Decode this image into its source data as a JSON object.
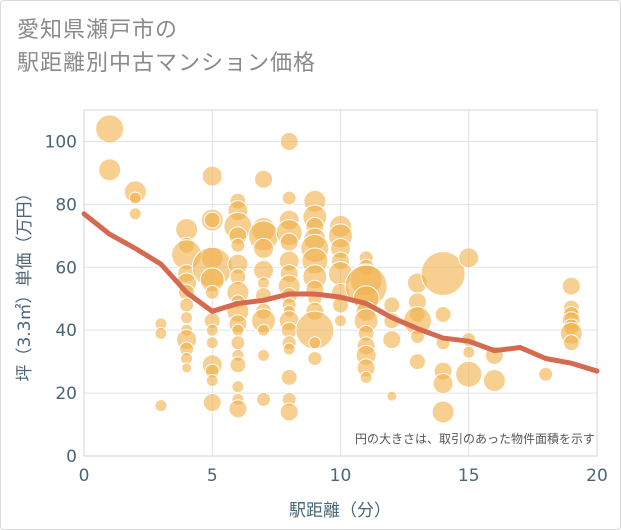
{
  "title_lines": [
    "愛知県瀬戸市の",
    "駅距離別中古マンション価格"
  ],
  "chart_data": {
    "type": "scatter",
    "title": "愛知県瀬戸市の 駅距離別中古マンション価格",
    "xlabel": "駅距離（分）",
    "ylabel": "坪（3.3㎡）単価（万円）",
    "xlim": [
      0,
      20
    ],
    "ylim": [
      0,
      110
    ],
    "xticks": [
      0,
      5,
      10,
      15,
      20
    ],
    "yticks": [
      0,
      20,
      40,
      60,
      80,
      100
    ],
    "grid": true,
    "note": "円の大きさは、取引のあった物件面積を示す",
    "colors": {
      "bubble": "#f0b24e",
      "trend": "#d56a50",
      "grid": "#dde3e8"
    },
    "bubble_size_scale": "area",
    "points": [
      {
        "x": 1,
        "y": 104,
        "s": 14
      },
      {
        "x": 1,
        "y": 91,
        "s": 11
      },
      {
        "x": 2,
        "y": 84,
        "s": 11
      },
      {
        "x": 2,
        "y": 82,
        "s": 6
      },
      {
        "x": 2,
        "y": 77,
        "s": 6
      },
      {
        "x": 3,
        "y": 42,
        "s": 6
      },
      {
        "x": 3,
        "y": 39,
        "s": 6
      },
      {
        "x": 3,
        "y": 16,
        "s": 6
      },
      {
        "x": 4,
        "y": 72,
        "s": 11
      },
      {
        "x": 4,
        "y": 67,
        "s": 8
      },
      {
        "x": 4,
        "y": 64,
        "s": 15
      },
      {
        "x": 4,
        "y": 58,
        "s": 9
      },
      {
        "x": 4,
        "y": 55,
        "s": 10
      },
      {
        "x": 4,
        "y": 52,
        "s": 8
      },
      {
        "x": 4,
        "y": 48,
        "s": 7
      },
      {
        "x": 4,
        "y": 44,
        "s": 6
      },
      {
        "x": 4,
        "y": 40,
        "s": 6
      },
      {
        "x": 4,
        "y": 37,
        "s": 10
      },
      {
        "x": 4,
        "y": 34,
        "s": 7
      },
      {
        "x": 4,
        "y": 31,
        "s": 6
      },
      {
        "x": 4,
        "y": 28,
        "s": 5
      },
      {
        "x": 5,
        "y": 89,
        "s": 10
      },
      {
        "x": 5,
        "y": 75,
        "s": 11
      },
      {
        "x": 5,
        "y": 75,
        "s": 8
      },
      {
        "x": 5,
        "y": 63,
        "s": 11
      },
      {
        "x": 5,
        "y": 60,
        "s": 20
      },
      {
        "x": 5,
        "y": 56,
        "s": 12
      },
      {
        "x": 5,
        "y": 52,
        "s": 7
      },
      {
        "x": 5,
        "y": 43,
        "s": 8
      },
      {
        "x": 5,
        "y": 40,
        "s": 6
      },
      {
        "x": 5,
        "y": 36,
        "s": 6
      },
      {
        "x": 5,
        "y": 29,
        "s": 10
      },
      {
        "x": 5,
        "y": 27,
        "s": 7
      },
      {
        "x": 5,
        "y": 24,
        "s": 6
      },
      {
        "x": 5,
        "y": 17,
        "s": 9
      },
      {
        "x": 6,
        "y": 81,
        "s": 8
      },
      {
        "x": 6,
        "y": 78,
        "s": 10
      },
      {
        "x": 6,
        "y": 73,
        "s": 14
      },
      {
        "x": 6,
        "y": 70,
        "s": 9
      },
      {
        "x": 6,
        "y": 67,
        "s": 7
      },
      {
        "x": 6,
        "y": 61,
        "s": 10
      },
      {
        "x": 6,
        "y": 57,
        "s": 8
      },
      {
        "x": 6,
        "y": 52,
        "s": 11
      },
      {
        "x": 6,
        "y": 49,
        "s": 7
      },
      {
        "x": 6,
        "y": 46,
        "s": 11
      },
      {
        "x": 6,
        "y": 42,
        "s": 9
      },
      {
        "x": 6,
        "y": 40,
        "s": 6
      },
      {
        "x": 6,
        "y": 36,
        "s": 7
      },
      {
        "x": 6,
        "y": 32,
        "s": 6
      },
      {
        "x": 6,
        "y": 29,
        "s": 8
      },
      {
        "x": 6,
        "y": 22,
        "s": 6
      },
      {
        "x": 6,
        "y": 18,
        "s": 6
      },
      {
        "x": 6,
        "y": 15,
        "s": 9
      },
      {
        "x": 7,
        "y": 88,
        "s": 9
      },
      {
        "x": 7,
        "y": 72,
        "s": 12
      },
      {
        "x": 7,
        "y": 70,
        "s": 15
      },
      {
        "x": 7,
        "y": 66,
        "s": 10
      },
      {
        "x": 7,
        "y": 59,
        "s": 10
      },
      {
        "x": 7,
        "y": 55,
        "s": 6
      },
      {
        "x": 7,
        "y": 51,
        "s": 8
      },
      {
        "x": 7,
        "y": 46,
        "s": 8
      },
      {
        "x": 7,
        "y": 43,
        "s": 12
      },
      {
        "x": 7,
        "y": 40,
        "s": 6
      },
      {
        "x": 7,
        "y": 32,
        "s": 6
      },
      {
        "x": 7,
        "y": 18,
        "s": 7
      },
      {
        "x": 8,
        "y": 100,
        "s": 9
      },
      {
        "x": 8,
        "y": 82,
        "s": 7
      },
      {
        "x": 8,
        "y": 75,
        "s": 10
      },
      {
        "x": 8,
        "y": 71,
        "s": 13
      },
      {
        "x": 8,
        "y": 68,
        "s": 9
      },
      {
        "x": 8,
        "y": 62,
        "s": 10
      },
      {
        "x": 8,
        "y": 58,
        "s": 9
      },
      {
        "x": 8,
        "y": 54,
        "s": 11
      },
      {
        "x": 8,
        "y": 51,
        "s": 8
      },
      {
        "x": 8,
        "y": 48,
        "s": 7
      },
      {
        "x": 8,
        "y": 46,
        "s": 6
      },
      {
        "x": 8,
        "y": 43,
        "s": 10
      },
      {
        "x": 8,
        "y": 40,
        "s": 8
      },
      {
        "x": 8,
        "y": 36,
        "s": 7
      },
      {
        "x": 8,
        "y": 34,
        "s": 6
      },
      {
        "x": 8,
        "y": 25,
        "s": 8
      },
      {
        "x": 8,
        "y": 18,
        "s": 7
      },
      {
        "x": 8,
        "y": 14,
        "s": 9
      },
      {
        "x": 9,
        "y": 81,
        "s": 11
      },
      {
        "x": 9,
        "y": 76,
        "s": 12
      },
      {
        "x": 9,
        "y": 73,
        "s": 9
      },
      {
        "x": 9,
        "y": 69,
        "s": 11
      },
      {
        "x": 9,
        "y": 66,
        "s": 14
      },
      {
        "x": 9,
        "y": 62,
        "s": 13
      },
      {
        "x": 9,
        "y": 57,
        "s": 12
      },
      {
        "x": 9,
        "y": 53,
        "s": 9
      },
      {
        "x": 9,
        "y": 50,
        "s": 7
      },
      {
        "x": 9,
        "y": 46,
        "s": 9
      },
      {
        "x": 9,
        "y": 40,
        "s": 19
      },
      {
        "x": 9,
        "y": 36,
        "s": 6
      },
      {
        "x": 9,
        "y": 31,
        "s": 7
      },
      {
        "x": 10,
        "y": 73,
        "s": 11
      },
      {
        "x": 10,
        "y": 70,
        "s": 12
      },
      {
        "x": 10,
        "y": 66,
        "s": 10
      },
      {
        "x": 10,
        "y": 62,
        "s": 9
      },
      {
        "x": 10,
        "y": 58,
        "s": 12
      },
      {
        "x": 10,
        "y": 52,
        "s": 9
      },
      {
        "x": 10,
        "y": 48,
        "s": 8
      },
      {
        "x": 10,
        "y": 43,
        "s": 6
      },
      {
        "x": 11,
        "y": 63,
        "s": 7
      },
      {
        "x": 11,
        "y": 60,
        "s": 8
      },
      {
        "x": 11,
        "y": 56,
        "s": 16
      },
      {
        "x": 11,
        "y": 54,
        "s": 21
      },
      {
        "x": 11,
        "y": 50,
        "s": 13
      },
      {
        "x": 11,
        "y": 46,
        "s": 10
      },
      {
        "x": 11,
        "y": 43,
        "s": 12
      },
      {
        "x": 11,
        "y": 39,
        "s": 8
      },
      {
        "x": 11,
        "y": 35,
        "s": 9
      },
      {
        "x": 11,
        "y": 32,
        "s": 10
      },
      {
        "x": 11,
        "y": 28,
        "s": 9
      },
      {
        "x": 11,
        "y": 25,
        "s": 6
      },
      {
        "x": 12,
        "y": 48,
        "s": 8
      },
      {
        "x": 12,
        "y": 43,
        "s": 8
      },
      {
        "x": 12,
        "y": 37,
        "s": 9
      },
      {
        "x": 12,
        "y": 19,
        "s": 5
      },
      {
        "x": 13,
        "y": 55,
        "s": 10
      },
      {
        "x": 13,
        "y": 49,
        "s": 9
      },
      {
        "x": 13,
        "y": 45,
        "s": 8
      },
      {
        "x": 13,
        "y": 43,
        "s": 14
      },
      {
        "x": 13,
        "y": 38,
        "s": 7
      },
      {
        "x": 13,
        "y": 30,
        "s": 8
      },
      {
        "x": 14,
        "y": 58,
        "s": 22
      },
      {
        "x": 14,
        "y": 45,
        "s": 8
      },
      {
        "x": 14,
        "y": 36,
        "s": 7
      },
      {
        "x": 14,
        "y": 27,
        "s": 9
      },
      {
        "x": 14,
        "y": 23,
        "s": 10
      },
      {
        "x": 14,
        "y": 14,
        "s": 11
      },
      {
        "x": 15,
        "y": 63,
        "s": 10
      },
      {
        "x": 15,
        "y": 37,
        "s": 7
      },
      {
        "x": 15,
        "y": 33,
        "s": 6
      },
      {
        "x": 15,
        "y": 26,
        "s": 13
      },
      {
        "x": 16,
        "y": 32,
        "s": 9
      },
      {
        "x": 16,
        "y": 24,
        "s": 11
      },
      {
        "x": 18,
        "y": 26,
        "s": 7
      },
      {
        "x": 19,
        "y": 54,
        "s": 9
      },
      {
        "x": 19,
        "y": 47,
        "s": 8
      },
      {
        "x": 19,
        "y": 45,
        "s": 8
      },
      {
        "x": 19,
        "y": 43,
        "s": 9
      },
      {
        "x": 19,
        "y": 41,
        "s": 8
      },
      {
        "x": 19,
        "y": 39,
        "s": 11
      },
      {
        "x": 19,
        "y": 36,
        "s": 8
      }
    ],
    "trend": {
      "x": [
        0,
        1,
        2,
        3,
        4,
        5,
        6,
        7,
        8,
        9,
        10,
        11,
        12,
        13,
        14,
        15,
        16,
        17,
        18,
        19,
        20
      ],
      "y": [
        77,
        70.5,
        66,
        61,
        52,
        46,
        48.5,
        49.5,
        51.5,
        51.5,
        50.5,
        48.5,
        44,
        40.5,
        37.5,
        36.5,
        33.5,
        34.5,
        31,
        29.5,
        27
      ]
    }
  }
}
